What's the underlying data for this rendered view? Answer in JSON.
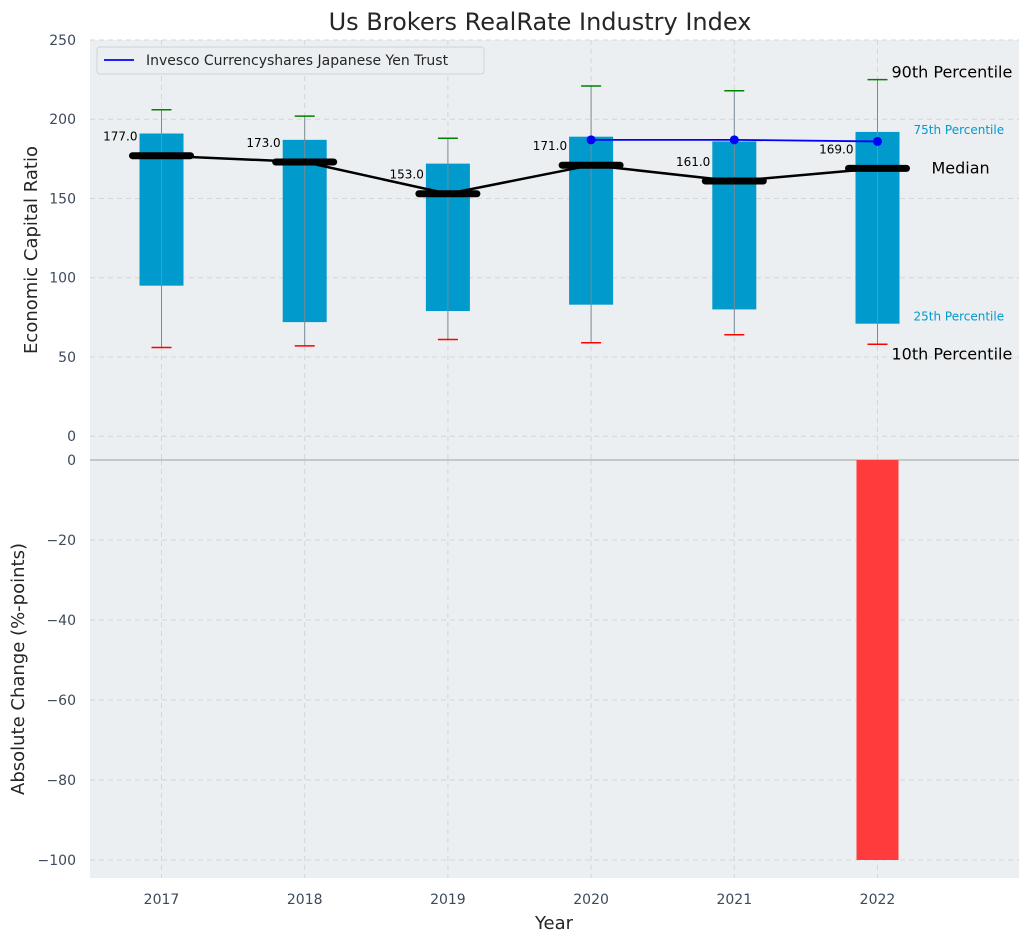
{
  "chart_data": [
    {
      "type": "box",
      "title": "Us Brokers RealRate Industry Index",
      "ylabel": "Economic Capital Ratio",
      "categories": [
        "2017",
        "2018",
        "2019",
        "2020",
        "2021",
        "2022"
      ],
      "ylim": [
        -15,
        250
      ],
      "yticks": [
        0,
        50,
        100,
        150,
        200,
        250
      ],
      "grid": true,
      "percentiles": {
        "p10": [
          56,
          57,
          61,
          59,
          64,
          58
        ],
        "p25": [
          95,
          72,
          79,
          83,
          80,
          71
        ],
        "median": [
          177,
          173,
          153,
          171,
          161,
          169
        ],
        "p75": [
          191,
          187,
          172,
          189,
          186,
          192
        ],
        "p90": [
          206,
          202,
          188,
          221,
          218,
          225
        ]
      },
      "median_labels": [
        "177.0",
        "173.0",
        "153.0",
        "171.0",
        "161.0",
        "169.0"
      ],
      "series": [
        {
          "name": "Invesco Currencyshares Japanese Yen Trust",
          "x": [
            "2020",
            "2021",
            "2022"
          ],
          "values": [
            187,
            187,
            186
          ],
          "color": "#0000ff"
        }
      ],
      "legend": {
        "placement": "top-left"
      },
      "annotations": {
        "p90": "90th Percentile",
        "p75": "75th Percentile",
        "median": "Median",
        "p25": "25th Percentile",
        "p10": "10th Percentile"
      },
      "colors": {
        "box": "#009ACD",
        "median_line": "#000000",
        "p90_cap": "#008000",
        "p10_cap": "#ff0000",
        "background": "#ECEFF1"
      }
    },
    {
      "type": "bar",
      "ylabel": "Absolute Change (%-points)",
      "xlabel": "Year",
      "categories": [
        "2017",
        "2018",
        "2019",
        "2020",
        "2021",
        "2022"
      ],
      "values": [
        0,
        0,
        0,
        0,
        0,
        -100
      ],
      "ylim": [
        -104.5,
        0
      ],
      "yticks": [
        0,
        -20,
        -40,
        -60,
        -80,
        -100
      ],
      "ytick_labels": [
        "0",
        "−20",
        "−40",
        "−60",
        "−80",
        "−100"
      ],
      "grid": true,
      "colors": {
        "bar": "#ff3b3b"
      }
    }
  ]
}
